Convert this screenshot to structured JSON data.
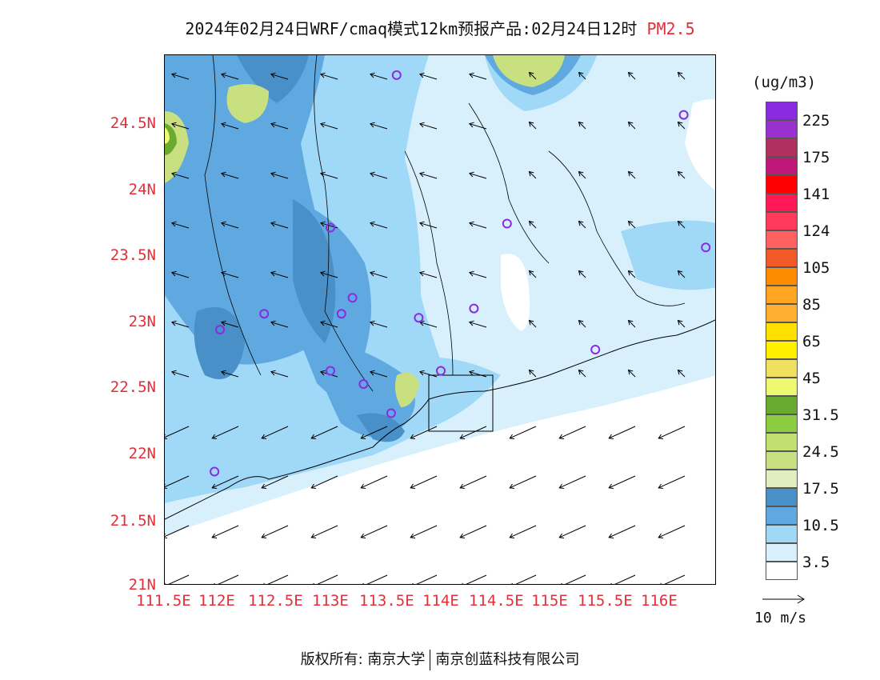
{
  "title": {
    "main": "2024年02月24日WRF/cmaq模式12km预报产品:02月24日12时",
    "variable": "PM2.5"
  },
  "axes": {
    "y_ticks": [
      "24.5N",
      "24N",
      "23.5N",
      "23N",
      "22.5N",
      "22N",
      "21.5N",
      "21N"
    ],
    "x_ticks": [
      "111.5E",
      "112E",
      "112.5E",
      "113E",
      "113.5E",
      "114E",
      "114.5E",
      "115E",
      "115.5E",
      "116E"
    ]
  },
  "legend": {
    "unit": "(ug/m3)",
    "labels": [
      "225",
      "175",
      "141",
      "124",
      "105",
      "85",
      "65",
      "45",
      "31.5",
      "24.5",
      "17.5",
      "10.5",
      "3.5"
    ],
    "colors": [
      "#8a2be2",
      "#9b30d0",
      "#b03060",
      "#c0187a",
      "#ff0000",
      "#ff1a55",
      "#ff3a5a",
      "#ff6060",
      "#f05a28",
      "#ff8c00",
      "#ffa520",
      "#ffb030",
      "#ffe000",
      "#fff000",
      "#f0e060",
      "#eef870",
      "#6aaa30",
      "#8ccc40",
      "#c0e070",
      "#c8e080",
      "#e0eec0",
      "#4a90c8",
      "#60a8e0",
      "#a0d8f8",
      "#d8f0fc",
      "#ffffff"
    ]
  },
  "wind_reference": {
    "label": "10 m/s"
  },
  "footer": {
    "left": "版权所有: 南京大学",
    "right": "南京创蓝科技有限公司"
  },
  "map": {
    "stations": [
      {
        "lon": 113.6,
        "lat": 24.85
      },
      {
        "lon": 116.2,
        "lat": 24.55
      },
      {
        "lon": 114.6,
        "lat": 23.73
      },
      {
        "lon": 113.0,
        "lat": 23.7
      },
      {
        "lon": 116.4,
        "lat": 23.55
      },
      {
        "lon": 113.2,
        "lat": 23.17
      },
      {
        "lon": 112.4,
        "lat": 23.05
      },
      {
        "lon": 113.1,
        "lat": 23.05
      },
      {
        "lon": 113.8,
        "lat": 23.02
      },
      {
        "lon": 114.3,
        "lat": 23.09
      },
      {
        "lon": 112.0,
        "lat": 22.93
      },
      {
        "lon": 115.4,
        "lat": 22.78
      },
      {
        "lon": 113.0,
        "lat": 22.62
      },
      {
        "lon": 114.0,
        "lat": 22.62
      },
      {
        "lon": 113.3,
        "lat": 22.52
      },
      {
        "lon": 113.55,
        "lat": 22.3
      },
      {
        "lon": 111.95,
        "lat": 21.86
      }
    ]
  }
}
